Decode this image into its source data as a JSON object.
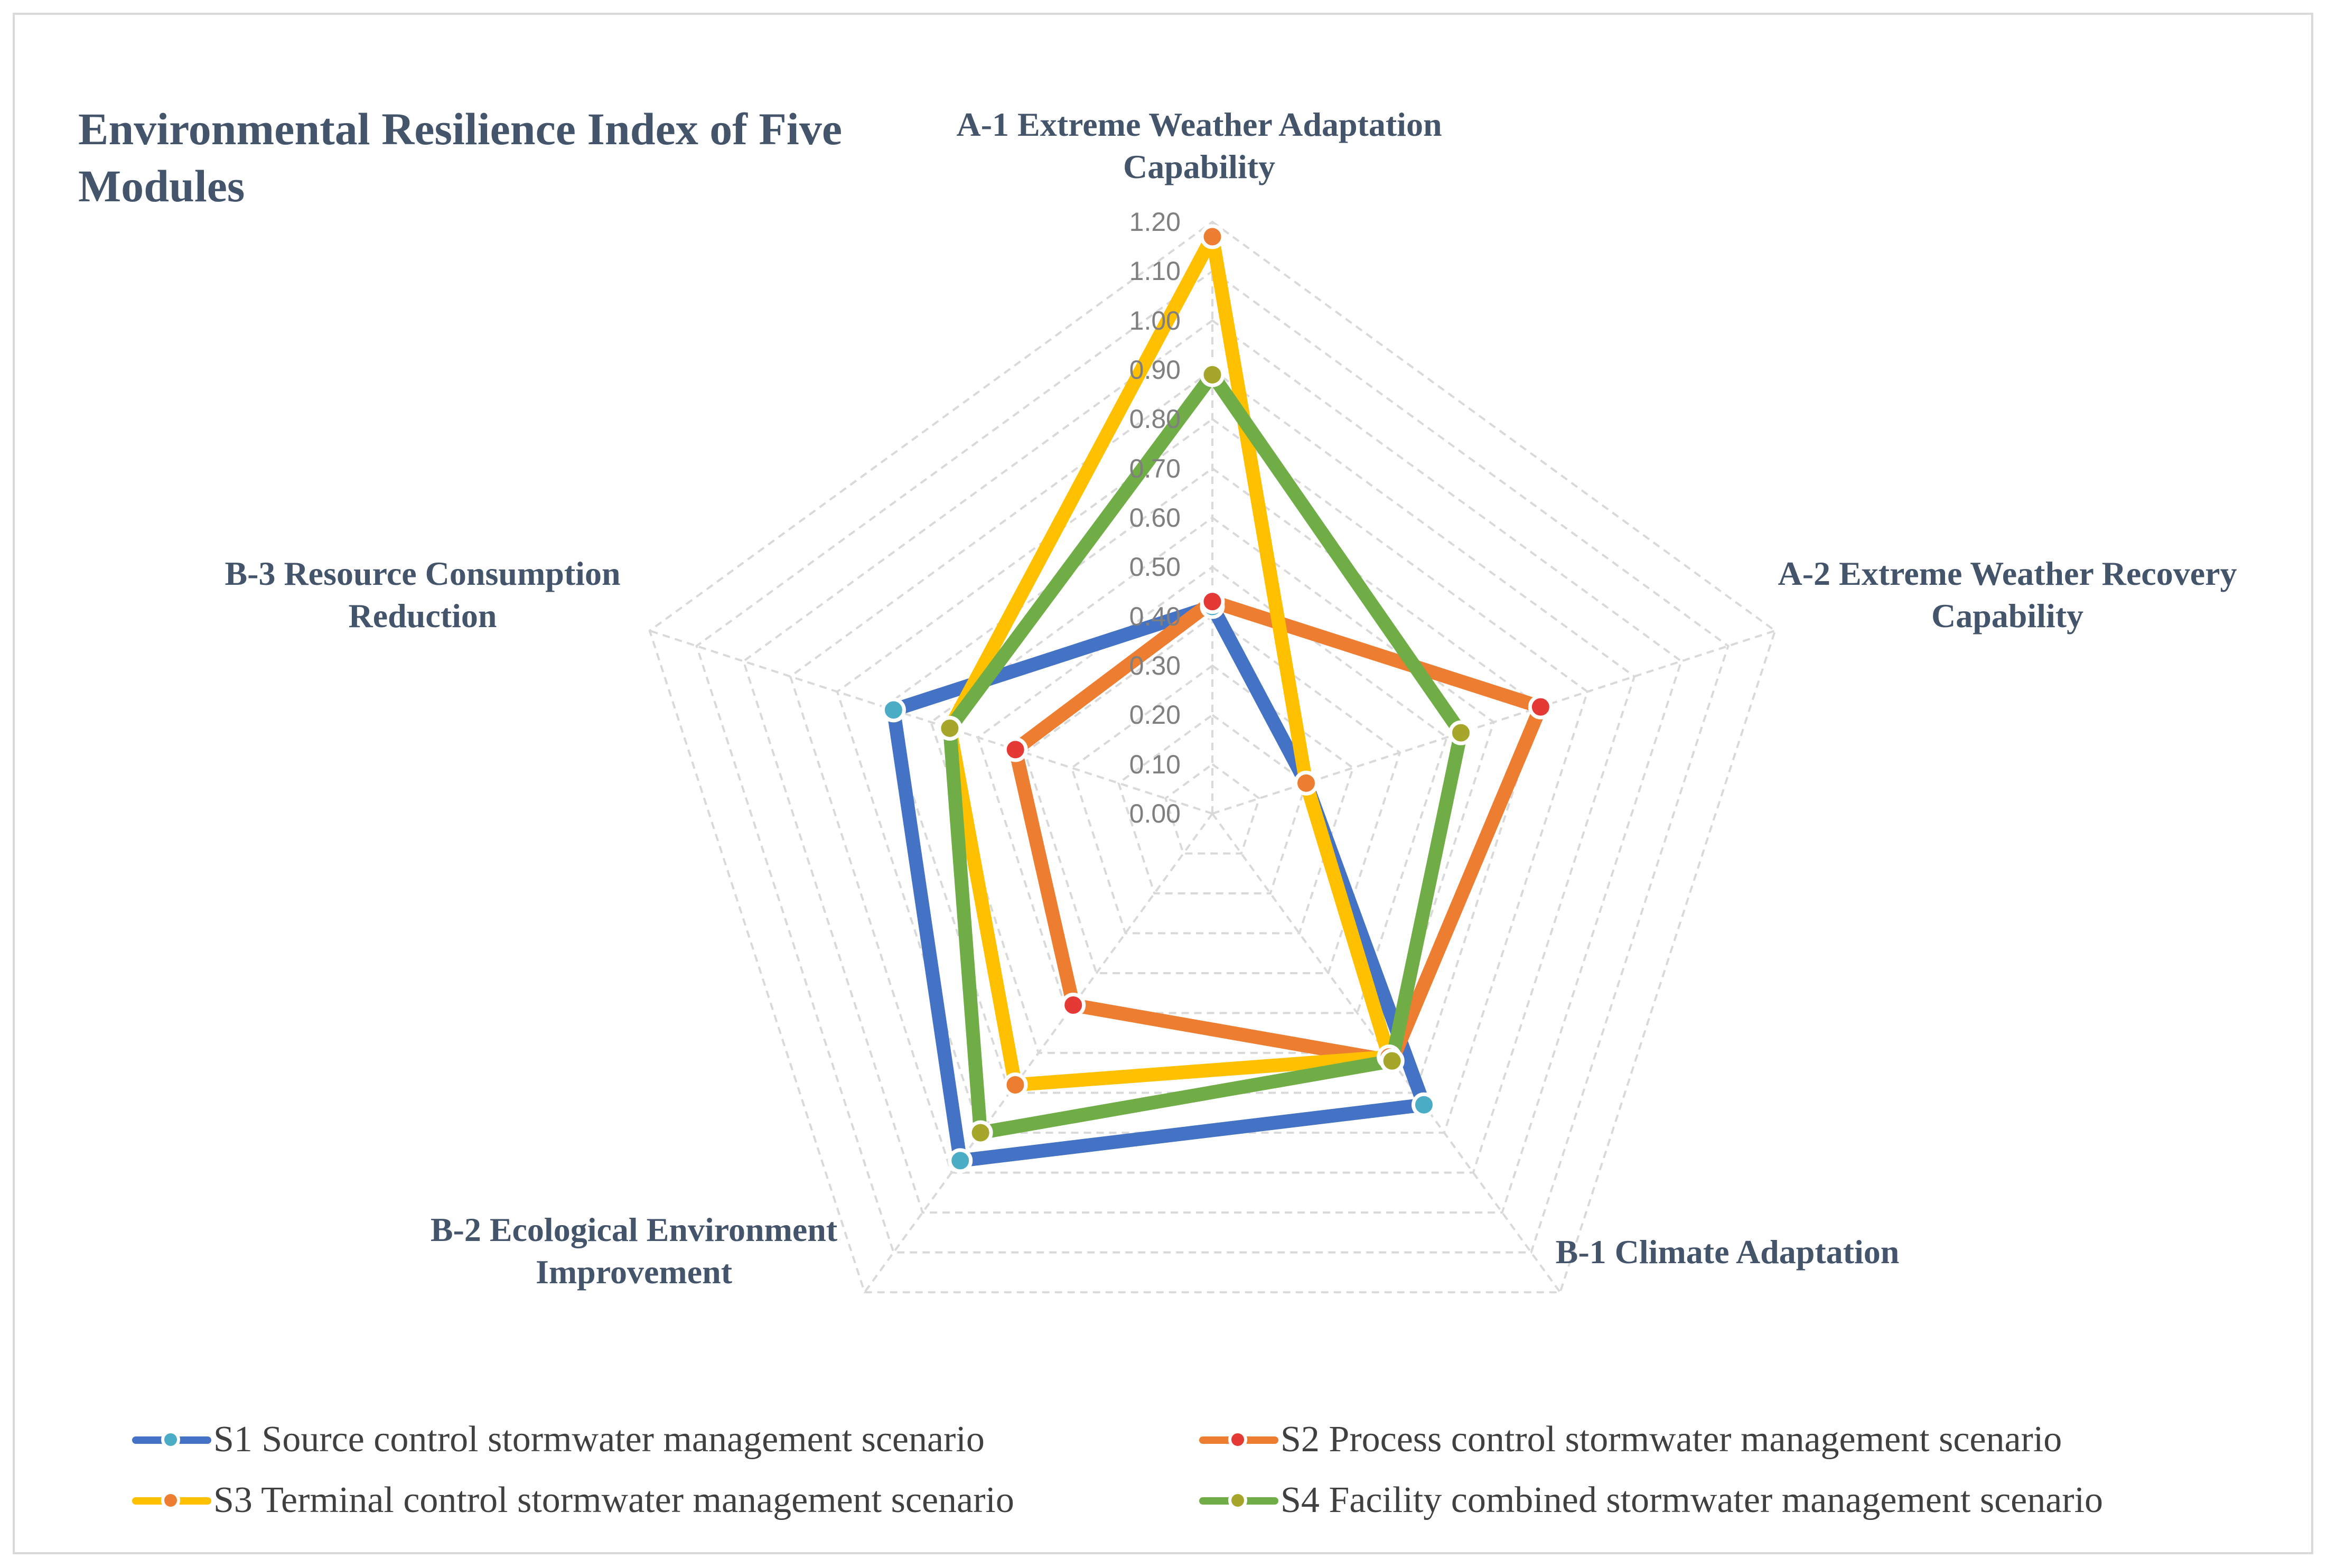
{
  "chart_data": {
    "type": "radar",
    "title": "Environmental Resilience Index of Five Modules",
    "axes": [
      "A-1 Extreme Weather Adaptation Capability",
      "A-2 Extreme Weather Recovery Capability",
      "B-1 Climate Adaptation",
      "B-2 Ecological Environment Improvement",
      "B-3 Resource Consumption Reduction"
    ],
    "rlim": [
      0,
      1.2
    ],
    "ticks": [
      "0.00",
      "0.10",
      "0.20",
      "0.30",
      "0.40",
      "0.50",
      "0.60",
      "0.70",
      "0.80",
      "0.90",
      "1.00",
      "1.10",
      "1.20"
    ],
    "grid": true,
    "legend_position": "bottom",
    "series": [
      {
        "name": "S1 Source control stormwater management scenario",
        "color": "#4472c4",
        "marker": "#4bacc6",
        "values": [
          0.42,
          0.2,
          0.73,
          0.87,
          0.68
        ]
      },
      {
        "name": "S2 Process control stormwater management scenario",
        "color": "#ed7d31",
        "marker": "#e53935",
        "values": [
          0.43,
          0.7,
          0.62,
          0.48,
          0.42
        ]
      },
      {
        "name": "S3 Terminal control stormwater management scenario",
        "color": "#ffc000",
        "marker": "#ed7d31",
        "values": [
          1.17,
          0.2,
          0.61,
          0.68,
          0.56
        ]
      },
      {
        "name": "S4 Facility combined stormwater management scenario",
        "color": "#70ad47",
        "marker": "#a6a62b",
        "values": [
          0.89,
          0.53,
          0.62,
          0.8,
          0.56
        ]
      }
    ]
  }
}
